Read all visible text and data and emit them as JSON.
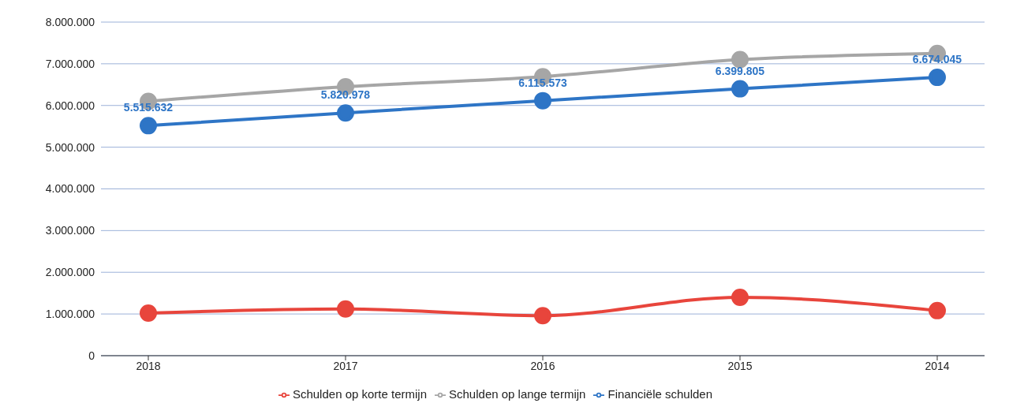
{
  "chart_data": {
    "type": "line",
    "categories": [
      "2018",
      "2017",
      "2016",
      "2015",
      "2014"
    ],
    "series": [
      {
        "name": "Schulden op korte termijn",
        "color": "#e8453c",
        "values": [
          1020000,
          1120000,
          960000,
          1400000,
          1080000
        ]
      },
      {
        "name": "Schulden op lange termijn",
        "color": "#a6a6a6",
        "values": [
          6100000,
          6450000,
          6690000,
          7100000,
          7250000
        ]
      },
      {
        "name": "Financiële schulden",
        "color": "#2e75c6",
        "values": [
          5515632,
          5820978,
          6115573,
          6399805,
          6674045
        ],
        "value_labels": [
          "5.515.632",
          "5.820.978",
          "6.115.573",
          "6.399.805",
          "6.674.045"
        ]
      }
    ],
    "ylim": [
      0,
      8000000
    ],
    "yticks": [
      0,
      {
        "value": 1000000,
        "label": "1.000.000"
      },
      {
        "value": 2000000,
        "label": "2.000.000"
      },
      {
        "value": 3000000,
        "label": "3.000.000"
      },
      {
        "value": 4000000,
        "label": "4.000.000"
      },
      {
        "value": 5000000,
        "label": "5.000.000"
      },
      {
        "value": 6000000,
        "label": "6.000.000"
      },
      {
        "value": 7000000,
        "label": "7.000.000"
      },
      {
        "value": 8000000,
        "label": "8.000.000"
      }
    ],
    "grid": "y",
    "legend": "bottom",
    "marker": "circle",
    "line_style": "solid"
  }
}
